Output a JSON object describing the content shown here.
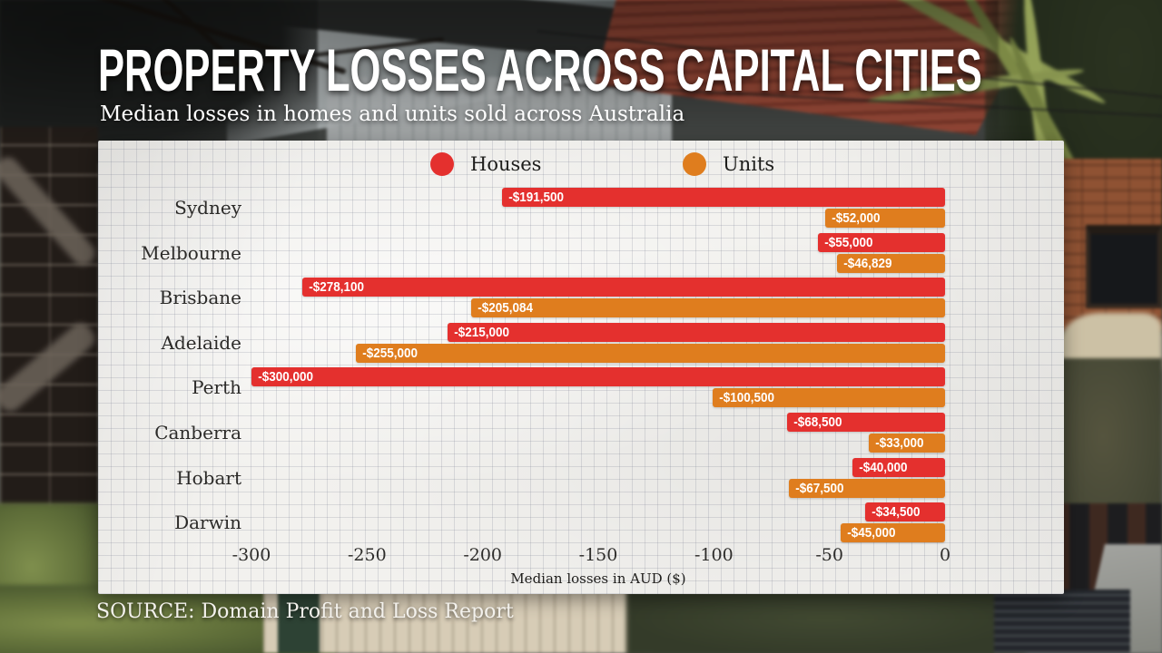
{
  "header": {
    "title": "PROPERTY LOSSES ACROSS CAPITAL CITIES",
    "subtitle": "Median losses in homes and units sold across Australia"
  },
  "footer": {
    "source": "SOURCE: Domain Profit and Loss Report"
  },
  "chart_data": {
    "type": "bar",
    "orientation": "horizontal",
    "title": "PROPERTY LOSSES ACROSS CAPITAL CITIES",
    "subtitle": "Median losses in homes and units sold across Australia",
    "xlabel": "Median losses in AUD ($)",
    "xlim": [
      -300000,
      0
    ],
    "x_ticks": [
      "-300",
      "-250",
      "-200",
      "-150",
      "-100",
      "-50",
      "0"
    ],
    "grid": true,
    "legend_position": "top",
    "categories": [
      "Sydney",
      "Melbourne",
      "Brisbane",
      "Adelaide",
      "Perth",
      "Canberra",
      "Hobart",
      "Darwin"
    ],
    "series": [
      {
        "name": "Houses",
        "color": "#e4302e",
        "values": [
          -191500,
          -55000,
          -278100,
          -215000,
          -300000,
          -68500,
          -40000,
          -34500
        ],
        "labels": [
          "-$191,500",
          "-$55,000",
          "-$278,100",
          "-$215,000",
          "-$300,000",
          "-$68,500",
          "-$40,000",
          "-$34,500"
        ]
      },
      {
        "name": "Units",
        "color": "#df7d1e",
        "values": [
          -52000,
          -46829,
          -205084,
          -255000,
          -100500,
          -33000,
          -67500,
          -45000
        ],
        "labels": [
          "-$52,000",
          "-$46,829",
          "-$205,084",
          "-$255,000",
          "-$100,500",
          "-$33,000",
          "-$67,500",
          "-$45,000"
        ]
      }
    ],
    "source": "SOURCE: Domain Profit and Loss Report"
  }
}
